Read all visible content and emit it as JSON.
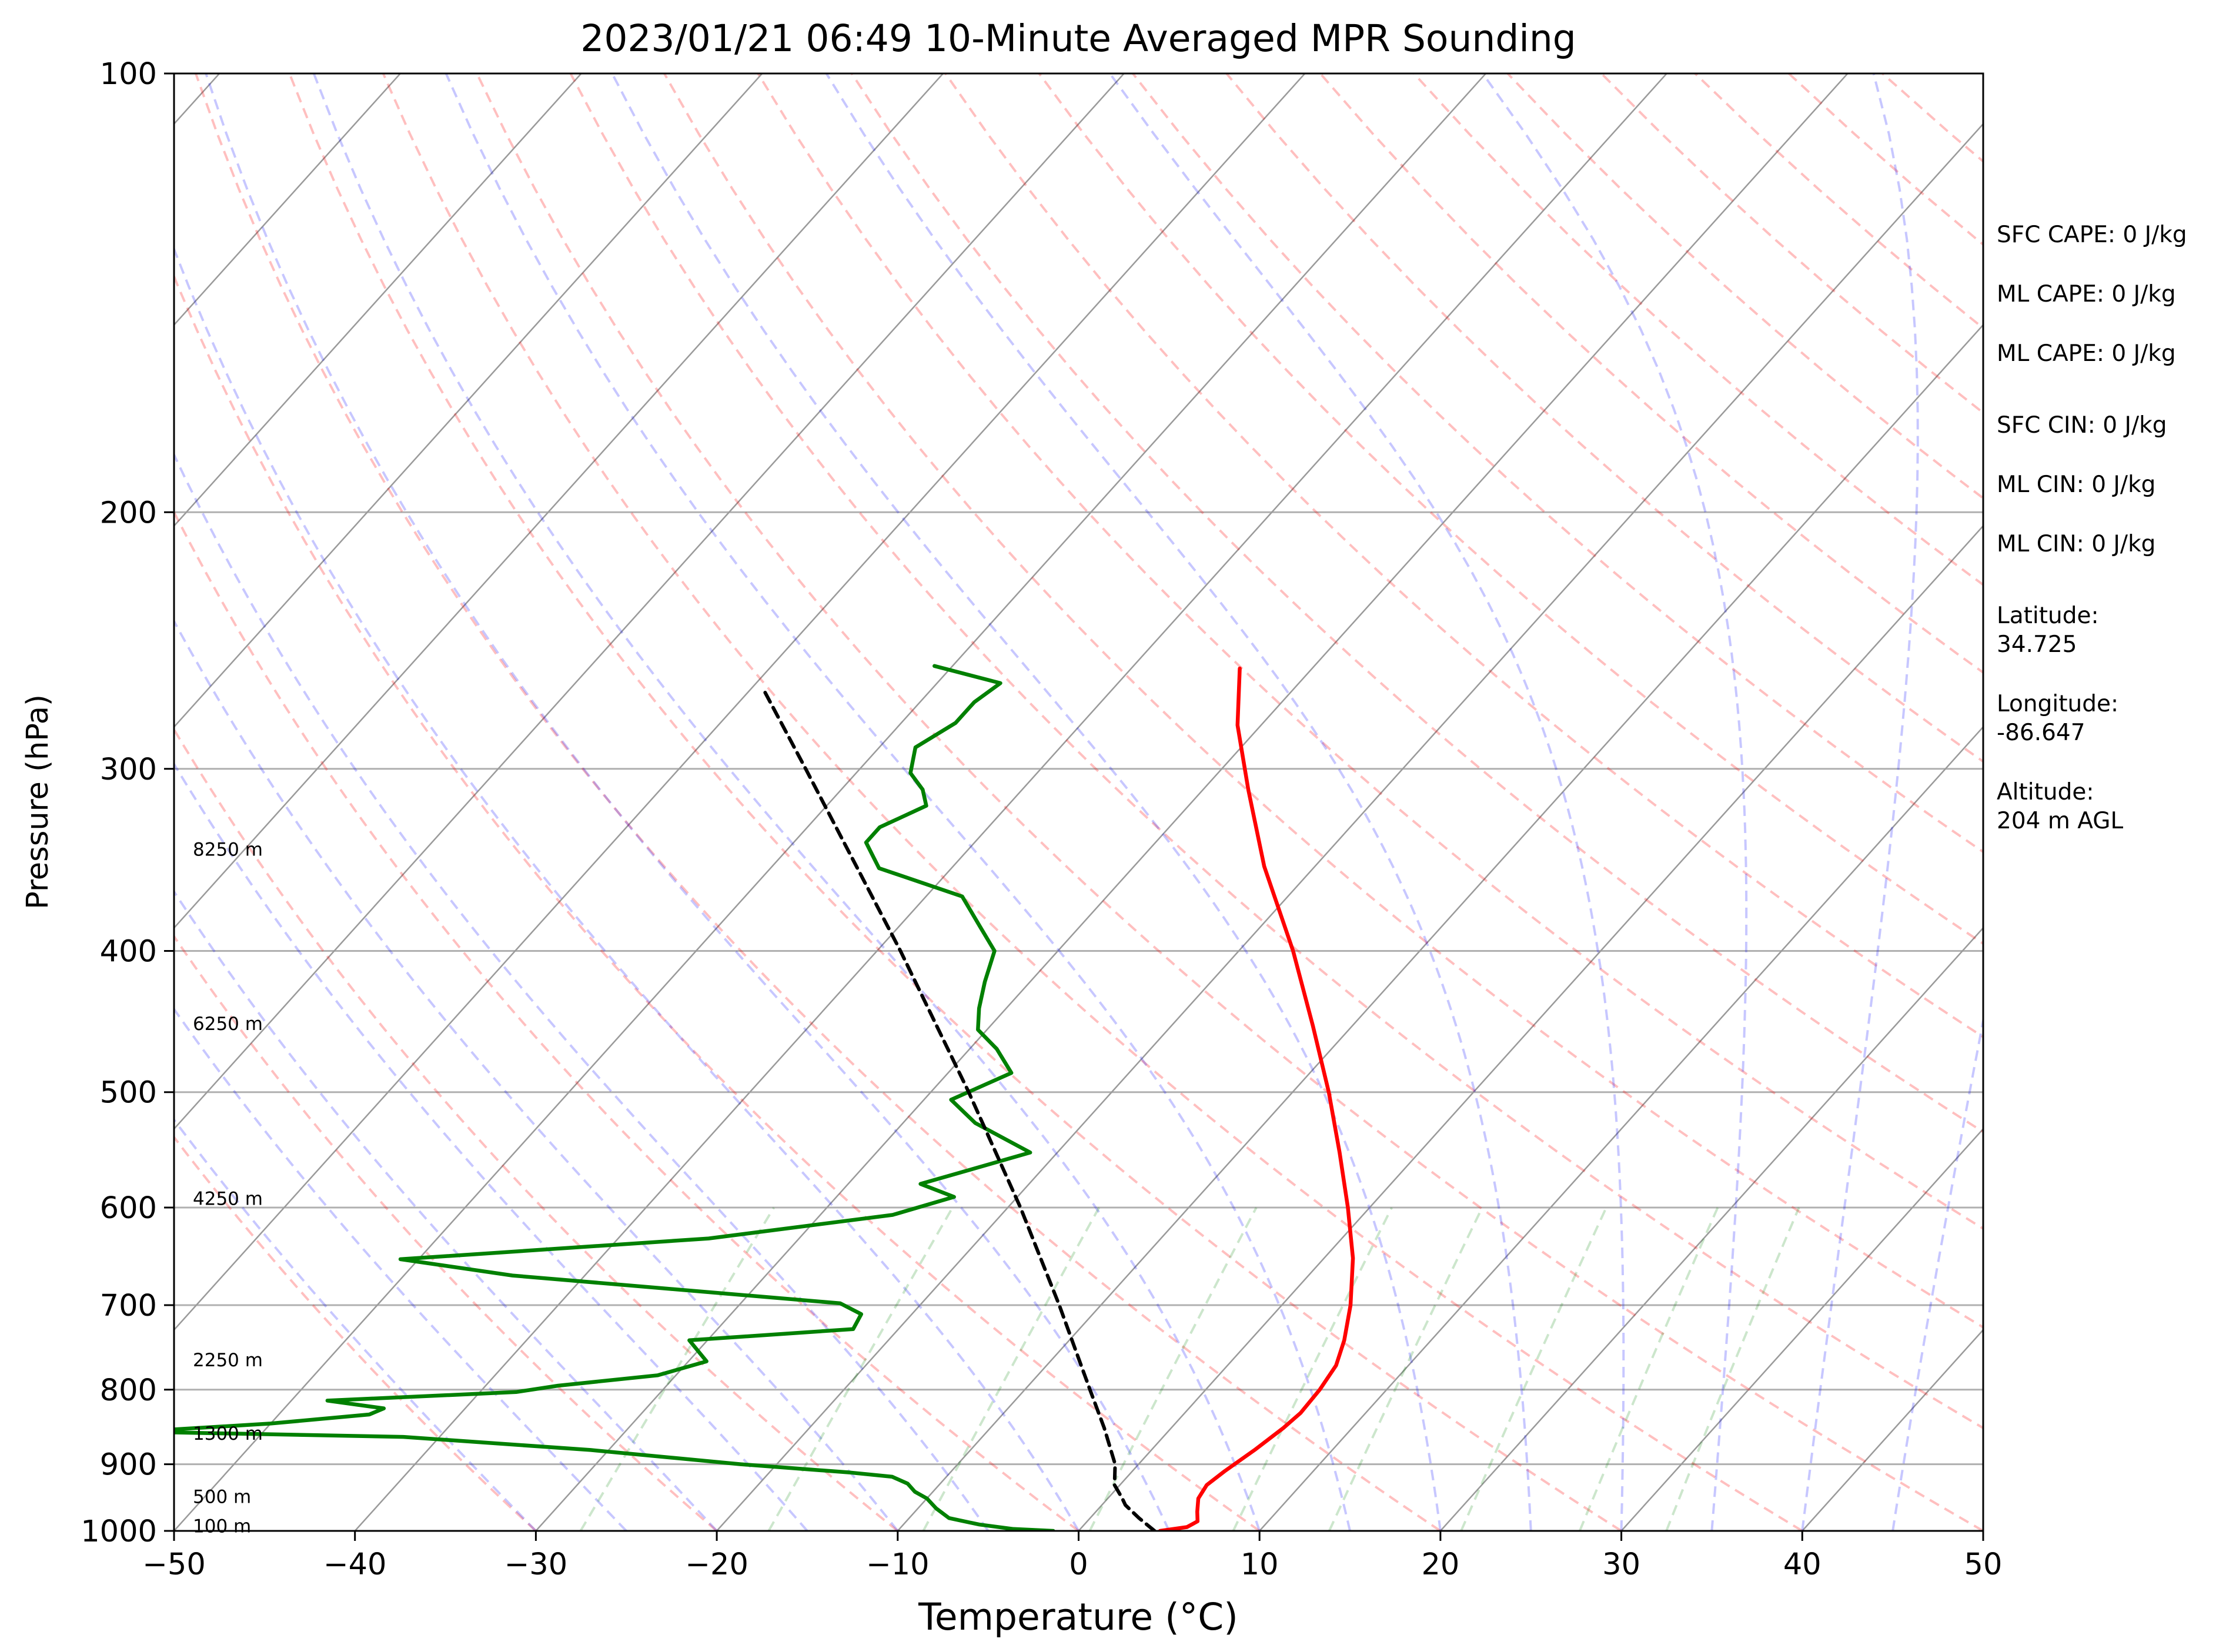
{
  "chart_data": {
    "type": "line",
    "subtype": "skew-t log-p sounding",
    "title": "2023/01/21 06:49 10-Minute Averaged MPR Sounding",
    "xlabel": "Temperature (°C)",
    "ylabel": "Pressure (hPa)",
    "xlim": [
      -50,
      50
    ],
    "ylim": [
      1000,
      100
    ],
    "y_scale": "log",
    "x_ticks": [
      "−50",
      "−40",
      "−30",
      "−20",
      "−10",
      "0",
      "10",
      "20",
      "30",
      "40",
      "50"
    ],
    "y_ticks": [
      100,
      200,
      300,
      400,
      500,
      600,
      700,
      800,
      900,
      1000
    ],
    "grid": true,
    "height_labels": [
      {
        "text": "100 m",
        "p": 993
      },
      {
        "text": "500 m",
        "p": 948
      },
      {
        "text": "1300 m",
        "p": 858
      },
      {
        "text": "2250 m",
        "p": 764
      },
      {
        "text": "4250 m",
        "p": 592
      },
      {
        "text": "6250 m",
        "p": 449
      },
      {
        "text": "8250 m",
        "p": 341
      }
    ],
    "series": [
      {
        "role": "temperature",
        "color": "#ff0000",
        "points": [
          [
            1000,
            4.5
          ],
          [
            994,
            5.8
          ],
          [
            985,
            6.1
          ],
          [
            970,
            5.6
          ],
          [
            950,
            5.0
          ],
          [
            930,
            4.8
          ],
          [
            910,
            5.1
          ],
          [
            880,
            5.7
          ],
          [
            850,
            6.2
          ],
          [
            830,
            6.4
          ],
          [
            800,
            6.3
          ],
          [
            770,
            6.0
          ],
          [
            740,
            5.2
          ],
          [
            700,
            3.8
          ],
          [
            650,
            1.6
          ],
          [
            600,
            -1.2
          ],
          [
            550,
            -4.4
          ],
          [
            500,
            -8.0
          ],
          [
            450,
            -12.2
          ],
          [
            400,
            -17.0
          ],
          [
            350,
            -22.8
          ],
          [
            310,
            -27.5
          ],
          [
            280,
            -31.3
          ],
          [
            256,
            -34.0
          ]
        ]
      },
      {
        "role": "dewpoint",
        "color": "#008000",
        "points": [
          [
            1000,
            -1.4
          ],
          [
            997,
            -3.7
          ],
          [
            990,
            -5.8
          ],
          [
            980,
            -7.8
          ],
          [
            965,
            -9.0
          ],
          [
            950,
            -10.0
          ],
          [
            940,
            -11.0
          ],
          [
            928,
            -11.8
          ],
          [
            918,
            -13.0
          ],
          [
            912,
            -15.5
          ],
          [
            900,
            -22.0
          ],
          [
            880,
            -31.0
          ],
          [
            862,
            -42.0
          ],
          [
            855,
            -57.0
          ],
          [
            844,
            -50.0
          ],
          [
            832,
            -45.0
          ],
          [
            824,
            -44.5
          ],
          [
            814,
            -48.0
          ],
          [
            803,
            -38.0
          ],
          [
            795,
            -36.0
          ],
          [
            782,
            -31.0
          ],
          [
            765,
            -29.0
          ],
          [
            740,
            -31.0
          ],
          [
            727,
            -22.5
          ],
          [
            710,
            -22.8
          ],
          [
            698,
            -24.5
          ],
          [
            668,
            -44.0
          ],
          [
            651,
            -51.0
          ],
          [
            630,
            -35.0
          ],
          [
            607,
            -26.0
          ],
          [
            590,
            -23.5
          ],
          [
            578,
            -26.0
          ],
          [
            550,
            -21.5
          ],
          [
            525,
            -26.0
          ],
          [
            506,
            -28.5
          ],
          [
            485,
            -26.5
          ],
          [
            467,
            -28.5
          ],
          [
            453,
            -30.5
          ],
          [
            438,
            -31.5
          ],
          [
            420,
            -32.5
          ],
          [
            400,
            -33.5
          ],
          [
            385,
            -35.5
          ],
          [
            367,
            -38.0
          ],
          [
            351,
            -44.0
          ],
          [
            337,
            -46.0
          ],
          [
            329,
            -46.0
          ],
          [
            318,
            -44.5
          ],
          [
            310,
            -45.5
          ],
          [
            302,
            -47.0
          ],
          [
            290,
            -48.0
          ],
          [
            279,
            -47.0
          ],
          [
            270,
            -47.0
          ],
          [
            262,
            -46.5
          ],
          [
            255,
            -51.0
          ]
        ]
      },
      {
        "role": "reference profile",
        "color": "#000000",
        "style": "dashed",
        "points": [
          [
            1000,
            4.2
          ],
          [
            980,
            2.7
          ],
          [
            960,
            1.3
          ],
          [
            950,
            0.8
          ],
          [
            930,
            -0.3
          ],
          [
            900,
            -1.3
          ],
          [
            850,
            -3.7
          ],
          [
            800,
            -6.4
          ],
          [
            700,
            -12.3
          ],
          [
            600,
            -19.3
          ],
          [
            500,
            -27.9
          ],
          [
            400,
            -38.7
          ],
          [
            300,
            -53.0
          ],
          [
            264,
            -59.4
          ]
        ]
      }
    ],
    "background_lines": [
      {
        "kind": "isotherms",
        "color": "#000000"
      },
      {
        "kind": "dry adiabats",
        "color": "#ff0000",
        "style": "dashed"
      },
      {
        "kind": "moist adiabats",
        "color": "#0000ff",
        "style": "dashed"
      },
      {
        "kind": "mixing ratio lines",
        "color": "#008000",
        "style": "dashed"
      }
    ]
  },
  "annotations": [
    {
      "text": "SFC CAPE: 0 J/kg"
    },
    {
      "text": "ML CAPE: 0 J/kg"
    },
    {
      "text": "ML CAPE: 0 J/kg"
    },
    {
      "text": "SFC CIN: 0 J/kg"
    },
    {
      "text": "ML CIN: 0 J/kg"
    },
    {
      "text": "ML CIN: 0 J/kg"
    },
    {
      "text": "Latitude:",
      "value": "34.725"
    },
    {
      "text": "Longitude:",
      "value": "-86.647"
    },
    {
      "text": "Altitude:",
      "value": "204 m AGL"
    }
  ]
}
